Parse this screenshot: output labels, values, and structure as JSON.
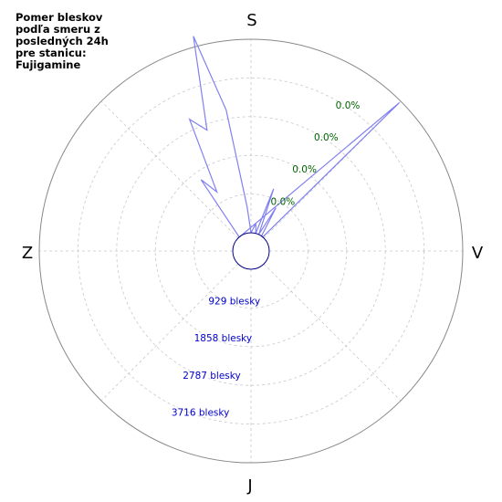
{
  "title_lines": [
    "Pomer bleskov",
    "podľa smeru z",
    "posledných 24h",
    "pre stanicu:",
    "Fujigamine"
  ],
  "colors": {
    "series": "#8080f0",
    "grid": "#c8c8c8",
    "ring_label": "#0000cc",
    "pct_label": "#006400",
    "hub": "#000080"
  },
  "chart_data": {
    "type": "polar-line",
    "title": "Pomer bleskov podľa smeru z posledných 24h pre stanicu: Fujigamine",
    "directions": {
      "top": "S",
      "right": "V",
      "bottom": "J",
      "left": "Z"
    },
    "r_max": 4645,
    "ring_values": [
      929,
      1858,
      2787,
      3716,
      4645
    ],
    "ring_labels": [
      "929 blesky",
      "1858 blesky",
      "2787 blesky",
      "3716 blesky"
    ],
    "pct_labels": [
      "0.0%",
      "0.0%",
      "0.0%",
      "0.0%"
    ],
    "grid": true,
    "series": [
      {
        "angles_deg": [
          0,
          10,
          15,
          20,
          25,
          30,
          35,
          40,
          45,
          315,
          320,
          325,
          330,
          335,
          340,
          345,
          350,
          355,
          0
        ],
        "values": [
          0,
          230,
          0,
          1150,
          0,
          760,
          0,
          0,
          4600,
          0,
          0,
          1650,
          1200,
          3050,
          2650,
          4900,
          3000,
          620,
          0
        ]
      }
    ]
  }
}
